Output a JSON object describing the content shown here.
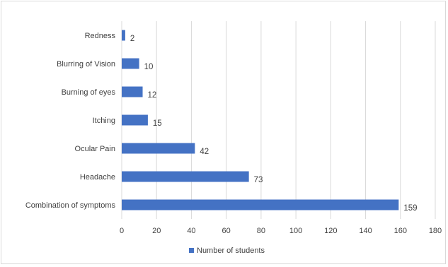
{
  "chart_data": {
    "type": "bar",
    "orientation": "horizontal",
    "categories": [
      "Redness",
      "Blurring of Vision",
      "Burning of eyes",
      "Itching",
      "Ocular Pain",
      "Headache",
      "Combination of symptoms"
    ],
    "series": [
      {
        "name": "Number of students",
        "values": [
          2,
          10,
          12,
          15,
          42,
          73,
          159
        ]
      }
    ],
    "xlim": [
      0,
      180
    ],
    "xticks": [
      0,
      20,
      40,
      60,
      80,
      100,
      120,
      140,
      160,
      180
    ],
    "grid": true,
    "legend_position": "bottom",
    "bar_color": "#4472c4"
  }
}
